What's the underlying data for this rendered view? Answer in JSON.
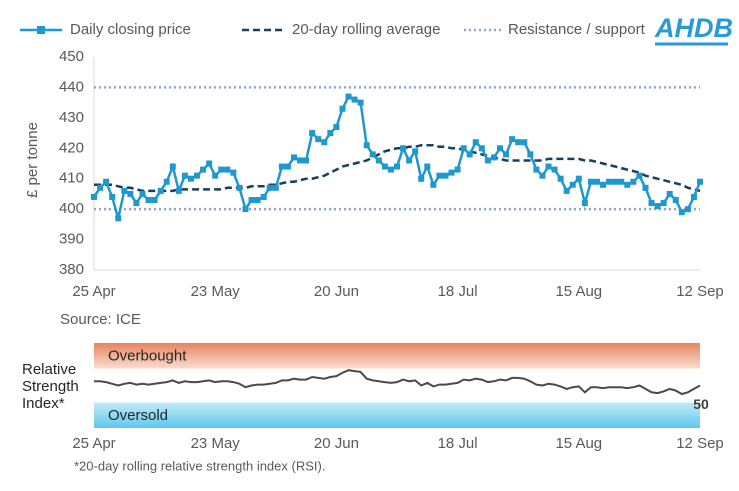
{
  "logo": "AHDB",
  "chart_data": [
    {
      "type": "line",
      "y_label": "£ per tonne",
      "source": "Source: ICE",
      "categories": [
        "25 Apr",
        null,
        null,
        null,
        null,
        null,
        null,
        null,
        null,
        null,
        null,
        null,
        null,
        null,
        null,
        null,
        null,
        null,
        null,
        null,
        "23 May",
        null,
        null,
        null,
        null,
        null,
        null,
        null,
        null,
        null,
        null,
        null,
        null,
        null,
        null,
        null,
        null,
        null,
        null,
        null,
        "20 Jun",
        null,
        null,
        null,
        null,
        null,
        null,
        null,
        null,
        null,
        null,
        null,
        null,
        null,
        null,
        null,
        null,
        null,
        null,
        null,
        "18 Jul",
        null,
        null,
        null,
        null,
        null,
        null,
        null,
        null,
        null,
        null,
        null,
        null,
        null,
        null,
        null,
        null,
        null,
        null,
        null,
        "15 Aug",
        null,
        null,
        null,
        null,
        null,
        null,
        null,
        null,
        null,
        null,
        null,
        null,
        null,
        null,
        null,
        null,
        null,
        null,
        null,
        "12 Sep"
      ],
      "series": [
        {
          "name": "Daily closing price",
          "color": "#1f97cf",
          "style": "marker",
          "values": [
            404,
            407,
            409,
            404,
            397,
            406,
            405,
            402,
            405,
            403,
            403,
            406,
            409,
            414,
            406,
            411,
            410,
            411,
            413,
            415,
            411,
            413,
            413,
            412,
            407,
            400,
            403,
            403,
            404,
            407,
            407,
            414,
            414,
            417,
            416,
            416,
            425,
            423,
            422,
            425,
            427,
            433,
            437,
            436,
            435,
            421,
            418,
            416,
            414,
            413,
            414,
            420,
            416,
            419,
            410,
            414,
            408,
            411,
            411,
            412,
            413,
            420,
            418,
            422,
            420,
            416,
            417,
            420,
            418,
            423,
            422,
            422,
            418,
            413,
            411,
            414,
            413,
            410,
            406,
            408,
            410,
            402,
            409,
            409,
            408,
            409,
            409,
            409,
            408,
            409,
            411,
            407,
            402,
            401,
            402,
            405,
            403,
            399,
            400,
            404,
            409
          ]
        },
        {
          "name": "20-day rolling average",
          "color": "#16405f",
          "style": "dashed",
          "values": [
            408,
            408,
            408,
            408,
            407.5,
            407,
            407,
            406.5,
            406,
            406,
            406,
            406,
            406,
            406,
            406.5,
            406.5,
            406.5,
            406.5,
            406.5,
            406.5,
            406.5,
            406.5,
            407,
            407,
            407,
            407,
            407.5,
            407.5,
            407.5,
            408,
            408,
            408.5,
            409,
            409,
            409.5,
            410,
            410,
            410.5,
            411,
            412,
            413,
            414,
            414.5,
            415,
            415.5,
            416,
            417,
            418,
            419,
            419.5,
            420,
            420,
            420.5,
            420.5,
            421,
            421,
            421,
            420.5,
            420.5,
            420,
            420,
            419.5,
            419,
            418.5,
            418,
            417.5,
            417,
            416.5,
            416,
            416,
            416,
            416,
            416,
            416,
            416,
            416.5,
            416.5,
            416.5,
            416.5,
            416.5,
            416.5,
            416,
            416,
            415.5,
            415,
            414.5,
            414,
            413.5,
            413,
            412.5,
            412,
            411,
            410.5,
            410,
            409.5,
            409,
            408.5,
            408,
            407,
            406.5,
            406
          ]
        }
      ],
      "hlines": {
        "name": "Resistance / support",
        "color": "#8ea6c4",
        "values": [
          440,
          400
        ]
      },
      "ylim": [
        380,
        450
      ],
      "yticks": [
        380,
        390,
        400,
        410,
        420,
        430,
        440,
        450
      ]
    },
    {
      "type": "line",
      "y_label": [
        "Relative",
        "Strength",
        "Index*"
      ],
      "footnote": "*20-day rolling relative strength index (RSI).",
      "categories": [
        "25 Apr",
        null,
        null,
        null,
        null,
        null,
        null,
        null,
        null,
        null,
        null,
        null,
        null,
        null,
        null,
        null,
        null,
        null,
        null,
        null,
        "23 May",
        null,
        null,
        null,
        null,
        null,
        null,
        null,
        null,
        null,
        null,
        null,
        null,
        null,
        null,
        null,
        null,
        null,
        null,
        null,
        "20 Jun",
        null,
        null,
        null,
        null,
        null,
        null,
        null,
        null,
        null,
        null,
        null,
        null,
        null,
        null,
        null,
        null,
        null,
        null,
        null,
        "18 Jul",
        null,
        null,
        null,
        null,
        null,
        null,
        null,
        null,
        null,
        null,
        null,
        null,
        null,
        null,
        null,
        null,
        null,
        null,
        null,
        "15 Aug",
        null,
        null,
        null,
        null,
        null,
        null,
        null,
        null,
        null,
        null,
        null,
        null,
        null,
        null,
        null,
        null,
        null,
        null,
        null,
        "12 Sep"
      ],
      "bands": [
        {
          "label": "Overbought",
          "range": [
            70,
            100
          ]
        },
        {
          "label": "Oversold",
          "range": [
            0,
            30
          ]
        }
      ],
      "series": [
        {
          "color": "#4a4a4a",
          "style": "plain",
          "values": [
            55,
            55,
            54,
            52,
            50,
            52,
            53,
            51,
            52,
            51,
            52,
            53,
            54,
            56,
            53,
            55,
            54,
            54,
            55,
            56,
            54,
            55,
            55,
            54,
            52,
            48,
            50,
            51,
            51,
            52,
            53,
            56,
            56,
            58,
            57,
            57,
            60,
            59,
            58,
            60,
            61,
            65,
            68,
            67,
            66,
            58,
            56,
            55,
            54,
            53,
            54,
            57,
            55,
            56,
            50,
            53,
            49,
            51,
            51,
            52,
            53,
            57,
            56,
            58,
            57,
            54,
            55,
            57,
            56,
            59,
            59,
            58,
            55,
            51,
            50,
            52,
            51,
            49,
            46,
            48,
            49,
            42,
            48,
            48,
            47,
            48,
            48,
            48,
            47,
            48,
            50,
            46,
            42,
            41,
            43,
            46,
            44,
            40,
            42,
            46,
            50
          ]
        }
      ],
      "ylim": [
        0,
        100
      ]
    }
  ]
}
